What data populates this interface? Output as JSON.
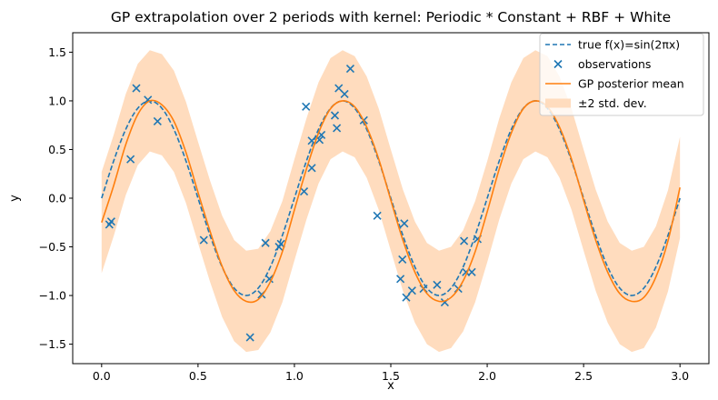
{
  "chart_data": {
    "type": "line",
    "title": "GP extrapolation over 2 periods with kernel: Periodic * Constant + RBF + White",
    "xlabel": "x",
    "ylabel": "y",
    "xlim": [
      -0.15,
      3.15
    ],
    "ylim": [
      -1.7,
      1.7
    ],
    "xticks": [
      "0.0",
      "0.5",
      "1.0",
      "1.5",
      "2.0",
      "2.5",
      "3.0"
    ],
    "yticks": [
      "-1.5",
      "-1.0",
      "-0.5",
      "0.0",
      "0.5",
      "1.0",
      "1.5"
    ],
    "legend_position": "top-right",
    "grid": false,
    "colors": {
      "true_function": "#1f77b4",
      "observations": "#1f77b4",
      "posterior_mean": "#ff7f0e",
      "band": "#ffdcbe"
    },
    "legend": [
      {
        "label": "true f(x)=sin(2πx)",
        "kind": "dashed-line"
      },
      {
        "label": "observations",
        "kind": "marker-x"
      },
      {
        "label": "GP posterior mean",
        "kind": "solid-line"
      },
      {
        "label": "±2 std. dev.",
        "kind": "band"
      }
    ],
    "series": [
      {
        "name": "true f(x)=sin(2πx)",
        "x": [
          0.0,
          0.0625,
          0.125,
          0.1875,
          0.25,
          0.3125,
          0.375,
          0.4375,
          0.5,
          0.5625,
          0.625,
          0.6875,
          0.75,
          0.8125,
          0.875,
          0.9375,
          1.0,
          1.0625,
          1.125,
          1.1875,
          1.25,
          1.3125,
          1.375,
          1.4375,
          1.5,
          1.5625,
          1.625,
          1.6875,
          1.75,
          1.8125,
          1.875,
          1.9375,
          2.0,
          2.0625,
          2.125,
          2.1875,
          2.25,
          2.3125,
          2.375,
          2.4375,
          2.5,
          2.5625,
          2.625,
          2.6875,
          2.75,
          2.8125,
          2.875,
          2.9375,
          3.0
        ],
        "y": [
          0.0,
          0.383,
          0.707,
          0.924,
          1.0,
          0.924,
          0.707,
          0.383,
          0.0,
          -0.383,
          -0.707,
          -0.924,
          -1.0,
          -0.924,
          -0.707,
          -0.383,
          0.0,
          0.383,
          0.707,
          0.924,
          1.0,
          0.924,
          0.707,
          0.383,
          0.0,
          -0.383,
          -0.707,
          -0.924,
          -1.0,
          -0.924,
          -0.707,
          -0.383,
          0.0,
          0.383,
          0.707,
          0.924,
          1.0,
          0.924,
          0.707,
          0.383,
          0.0,
          -0.383,
          -0.707,
          -0.924,
          -1.0,
          -0.924,
          -0.707,
          -0.383,
          0.0
        ]
      },
      {
        "name": "GP posterior mean",
        "x": [
          0.0,
          0.0625,
          0.125,
          0.1875,
          0.25,
          0.3125,
          0.375,
          0.4375,
          0.5,
          0.5625,
          0.625,
          0.6875,
          0.75,
          0.8125,
          0.875,
          0.9375,
          1.0,
          1.0625,
          1.125,
          1.1875,
          1.25,
          1.3125,
          1.375,
          1.4375,
          1.5,
          1.5625,
          1.625,
          1.6875,
          1.75,
          1.8125,
          1.875,
          1.9375,
          2.0,
          2.0625,
          2.125,
          2.1875,
          2.25,
          2.3125,
          2.375,
          2.4375,
          2.5,
          2.5625,
          2.625,
          2.6875,
          2.75,
          2.8125,
          2.875,
          2.9375,
          3.0
        ],
        "y": [
          -0.25,
          0.13,
          0.55,
          0.86,
          1.0,
          0.96,
          0.79,
          0.47,
          0.06,
          -0.34,
          -0.7,
          -0.95,
          -1.06,
          -1.04,
          -0.86,
          -0.55,
          -0.12,
          0.3,
          0.67,
          0.92,
          1.0,
          0.94,
          0.73,
          0.4,
          -0.02,
          -0.43,
          -0.76,
          -0.98,
          -1.06,
          -1.02,
          -0.85,
          -0.55,
          -0.14,
          0.3,
          0.67,
          0.92,
          1.0,
          0.94,
          0.73,
          0.4,
          -0.02,
          -0.43,
          -0.76,
          -0.98,
          -1.06,
          -1.02,
          -0.81,
          -0.44,
          0.11
        ]
      },
      {
        "name": "±2 std. dev.",
        "x": [
          0.0,
          0.0625,
          0.125,
          0.1875,
          0.25,
          0.3125,
          0.375,
          0.4375,
          0.5,
          0.5625,
          0.625,
          0.6875,
          0.75,
          0.8125,
          0.875,
          0.9375,
          1.0,
          1.0625,
          1.125,
          1.1875,
          1.25,
          1.3125,
          1.375,
          1.4375,
          1.5,
          1.5625,
          1.625,
          1.6875,
          1.75,
          1.8125,
          1.875,
          1.9375,
          2.0,
          2.0625,
          2.125,
          2.1875,
          2.25,
          2.3125,
          2.375,
          2.4375,
          2.5,
          2.5625,
          2.625,
          2.6875,
          2.75,
          2.8125,
          2.875,
          2.9375,
          3.0
        ],
        "lower": [
          -0.77,
          -0.39,
          0.03,
          0.34,
          0.48,
          0.44,
          0.27,
          -0.05,
          -0.46,
          -0.86,
          -1.22,
          -1.47,
          -1.58,
          -1.56,
          -1.38,
          -1.07,
          -0.64,
          -0.22,
          0.15,
          0.4,
          0.48,
          0.42,
          0.21,
          -0.12,
          -0.54,
          -0.95,
          -1.28,
          -1.5,
          -1.58,
          -1.54,
          -1.37,
          -1.07,
          -0.66,
          -0.22,
          0.15,
          0.4,
          0.48,
          0.42,
          0.21,
          -0.12,
          -0.54,
          -0.95,
          -1.28,
          -1.5,
          -1.58,
          -1.54,
          -1.33,
          -0.96,
          -0.41
        ],
        "upper": [
          0.27,
          0.65,
          1.07,
          1.38,
          1.52,
          1.48,
          1.31,
          0.99,
          0.58,
          0.18,
          -0.18,
          -0.43,
          -0.54,
          -0.52,
          -0.34,
          -0.03,
          0.4,
          0.82,
          1.19,
          1.44,
          1.52,
          1.46,
          1.25,
          0.92,
          0.5,
          0.09,
          -0.24,
          -0.46,
          -0.54,
          -0.5,
          -0.33,
          -0.03,
          0.38,
          0.82,
          1.19,
          1.44,
          1.52,
          1.46,
          1.25,
          0.92,
          0.5,
          0.09,
          -0.24,
          -0.46,
          -0.54,
          -0.5,
          -0.29,
          0.08,
          0.63
        ]
      },
      {
        "name": "observations",
        "points": [
          [
            0.04,
            -0.27
          ],
          [
            0.05,
            -0.24
          ],
          [
            0.15,
            0.4
          ],
          [
            0.18,
            1.13
          ],
          [
            0.24,
            1.01
          ],
          [
            0.29,
            0.79
          ],
          [
            0.53,
            -0.43
          ],
          [
            0.77,
            -1.43
          ],
          [
            0.83,
            -0.99
          ],
          [
            0.85,
            -0.46
          ],
          [
            0.87,
            -0.83
          ],
          [
            0.92,
            -0.5
          ],
          [
            0.93,
            -0.47
          ],
          [
            1.06,
            0.94
          ],
          [
            1.05,
            0.07
          ],
          [
            1.09,
            0.31
          ],
          [
            1.09,
            0.59
          ],
          [
            1.13,
            0.6
          ],
          [
            1.14,
            0.65
          ],
          [
            1.21,
            0.85
          ],
          [
            1.22,
            0.72
          ],
          [
            1.23,
            1.13
          ],
          [
            1.26,
            1.07
          ],
          [
            1.29,
            1.33
          ],
          [
            1.36,
            0.8
          ],
          [
            1.43,
            -0.18
          ],
          [
            1.55,
            -0.83
          ],
          [
            1.56,
            -0.63
          ],
          [
            1.57,
            -0.26
          ],
          [
            1.58,
            -1.02
          ],
          [
            1.61,
            -0.95
          ],
          [
            1.67,
            -0.93
          ],
          [
            1.74,
            -0.89
          ],
          [
            1.78,
            -1.07
          ],
          [
            1.85,
            -0.93
          ],
          [
            1.88,
            -0.44
          ],
          [
            1.89,
            -0.76
          ],
          [
            1.92,
            -0.76
          ],
          [
            1.95,
            -0.42
          ]
        ]
      }
    ]
  }
}
